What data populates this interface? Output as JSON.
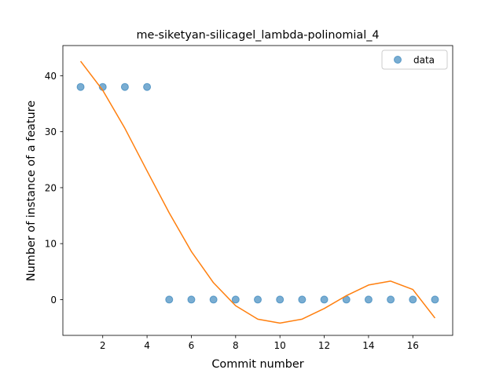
{
  "chart_data": {
    "type": "scatter",
    "title": "me-siketyan-silicagel_lambda-polinomial_4",
    "xlabel": "Commit number",
    "ylabel": "Number of instance of a feature",
    "xlim": [
      0.2,
      17.8
    ],
    "ylim": [
      -6.4,
      45.4
    ],
    "xticks": [
      2,
      4,
      6,
      8,
      10,
      12,
      14,
      16
    ],
    "yticks": [
      0,
      10,
      20,
      30,
      40
    ],
    "grid": false,
    "legend_position": "top-right",
    "series": [
      {
        "name": "data",
        "kind": "scatter",
        "color": "#1f77b4",
        "x": [
          1,
          2,
          3,
          4,
          5,
          6,
          7,
          8,
          9,
          10,
          11,
          12,
          13,
          14,
          15,
          16,
          17
        ],
        "y": [
          38,
          38,
          38,
          38,
          0,
          0,
          0,
          0,
          0,
          0,
          0,
          0,
          0,
          0,
          0,
          0,
          0
        ]
      },
      {
        "kind": "line",
        "color": "#ff7f0e",
        "x": [
          1,
          2,
          3,
          4,
          5,
          6,
          7,
          8,
          9,
          10,
          11,
          12,
          13,
          14,
          15,
          16,
          17
        ],
        "y": [
          42.6,
          37.4,
          30.6,
          23.0,
          15.5,
          8.6,
          3.0,
          -1.1,
          -3.5,
          -4.2,
          -3.5,
          -1.6,
          0.7,
          2.6,
          3.3,
          1.8,
          -3.3
        ]
      }
    ]
  }
}
